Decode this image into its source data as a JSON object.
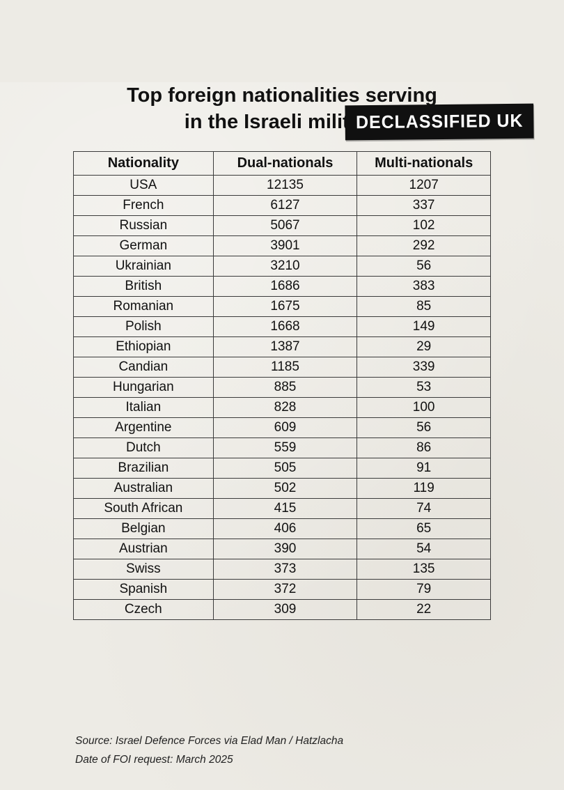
{
  "page": {
    "background_color": "#edebe5",
    "text_color": "#111111"
  },
  "badge": {
    "label": "DECLASSIFIED UK",
    "bg_color": "#101010",
    "fg_color": "#ffffff"
  },
  "title": {
    "line1": "Top foreign nationalities serving",
    "line2": "in the Israeli military"
  },
  "chart_data": {
    "type": "table",
    "title": "Top foreign nationalities serving in the Israeli military",
    "columns": [
      "Nationality",
      "Dual-nationals",
      "Multi-nationals"
    ],
    "rows": [
      [
        "USA",
        12135,
        1207
      ],
      [
        "French",
        6127,
        337
      ],
      [
        "Russian",
        5067,
        102
      ],
      [
        "German",
        3901,
        292
      ],
      [
        "Ukrainian",
        3210,
        56
      ],
      [
        "British",
        1686,
        383
      ],
      [
        "Romanian",
        1675,
        85
      ],
      [
        "Polish",
        1668,
        149
      ],
      [
        "Ethiopian",
        1387,
        29
      ],
      [
        "Candian",
        1185,
        339
      ],
      [
        "Hungarian",
        885,
        53
      ],
      [
        "Italian",
        828,
        100
      ],
      [
        "Argentine",
        609,
        56
      ],
      [
        "Dutch",
        559,
        86
      ],
      [
        "Brazilian",
        505,
        91
      ],
      [
        "Australian",
        502,
        119
      ],
      [
        "South African",
        415,
        74
      ],
      [
        "Belgian",
        406,
        65
      ],
      [
        "Austrian",
        390,
        54
      ],
      [
        "Swiss",
        373,
        135
      ],
      [
        "Spanish",
        372,
        79
      ],
      [
        "Czech",
        309,
        22
      ]
    ]
  },
  "footer": {
    "source_line": "Source: Israel Defence Forces via Elad Man / Hatzlacha",
    "date_line": "Date of FOI request: March 2025"
  }
}
